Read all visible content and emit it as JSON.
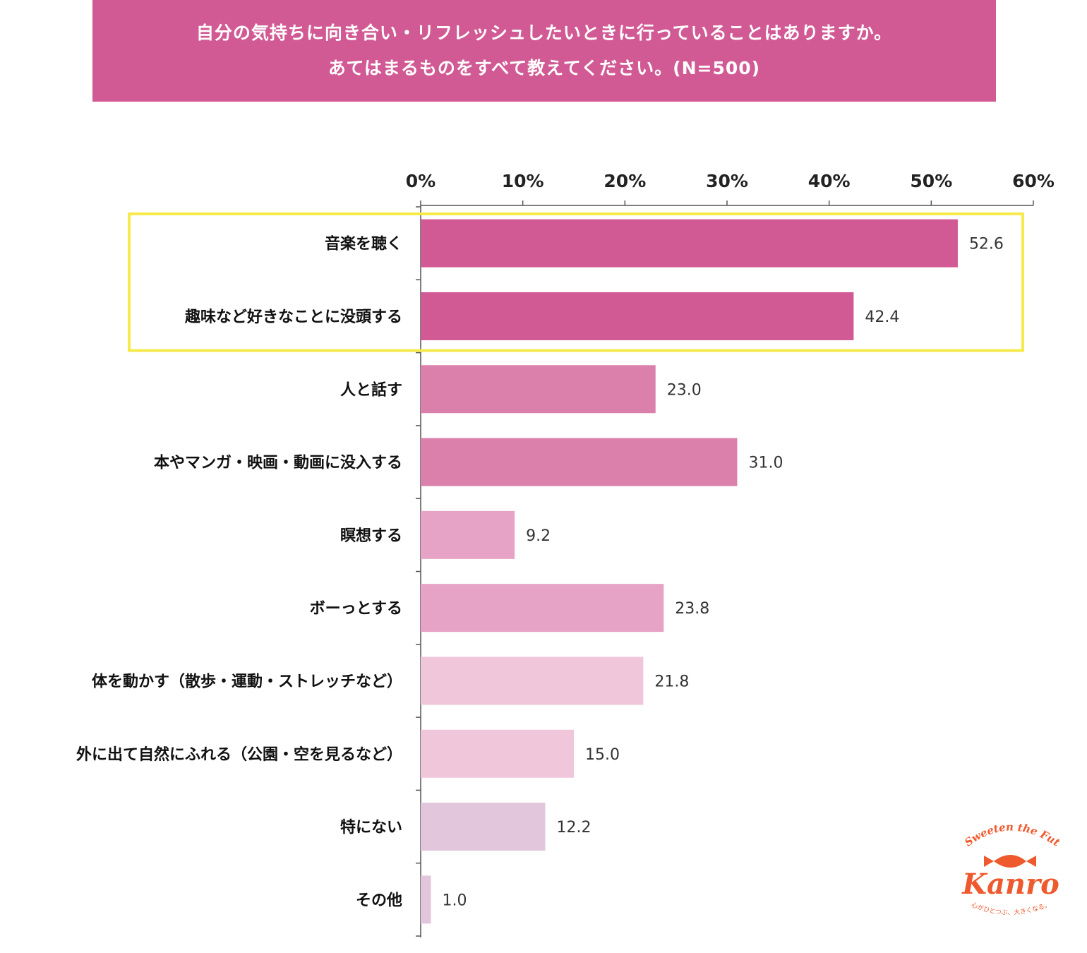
{
  "title": {
    "line1": "自分の気持ちに向き合い・リフレッシュしたいときに行っていることはありますか。",
    "line2": "あてはまるものをすべて教えてください。(N=500)"
  },
  "chart_data": {
    "type": "bar",
    "orientation": "horizontal",
    "title": "自分の気持ちに向き合い・リフレッシュしたいときに行っていることはありますか。あてはまるものをすべて教えてください。(N=500)",
    "xlim": [
      0,
      60
    ],
    "x_ticks": [
      "0%",
      "10%",
      "20%",
      "30%",
      "40%",
      "50%",
      "60%"
    ],
    "x_axis_position": "top",
    "grid": false,
    "categories": [
      "音楽を聴く",
      "趣味など好きなことに没頭する",
      "人と話す",
      "本やマンガ・映画・動画に没入する",
      "瞑想する",
      "ボーっとする",
      "体を動かす（散歩・運動・ストレッチなど）",
      "外に出て自然にふれる（公園・空を見るなど）",
      "特にない",
      "その他"
    ],
    "values": [
      52.6,
      42.4,
      23.0,
      31.0,
      9.2,
      23.8,
      21.8,
      15.0,
      12.2,
      1.0
    ],
    "value_labels": [
      "52.6",
      "42.4",
      "23.0",
      "31.0",
      "9.2",
      "23.8",
      "21.8",
      "15.0",
      "12.2",
      "1.0"
    ],
    "bar_colors": [
      "#d25a94",
      "#d25a94",
      "#da80aa",
      "#da80aa",
      "#e6a3c5",
      "#e6a3c5",
      "#f0c6da",
      "#f0c6da",
      "#e2c6dc",
      "#e2c6dc"
    ],
    "highlight": {
      "categories": [
        "音楽を聴く",
        "趣味など好きなことに没頭する"
      ],
      "color": "#f5ea4a"
    }
  },
  "colors": {
    "banner": "#d25a94",
    "highlight_box": "#f5ea4a",
    "logo": "#ee5a2e"
  },
  "logo": {
    "tagline": "Sweeten the Future",
    "brand": "Kanro",
    "subtitle": "心がひとつぶ、大きくなる。"
  }
}
